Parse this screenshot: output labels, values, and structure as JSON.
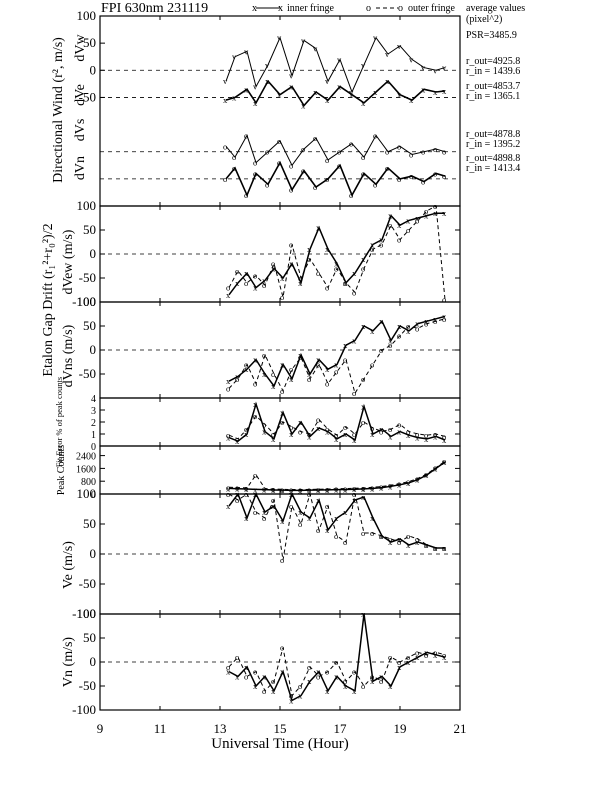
{
  "header": {
    "title": "FPI 630nm 231119",
    "legend_inner": "inner fringe",
    "legend_outer": "outer fringe",
    "legend_avg_line1": "average values",
    "legend_avg_line2": "(pixel^2)"
  },
  "psr_label": "PSR=3485.9",
  "ring_labels": [
    {
      "out": "r_out=4925.8",
      "in": "r_in = 1439.6"
    },
    {
      "out": "r_out=4853.7",
      "in": "r_in = 1365.1"
    },
    {
      "out": "r_out=4878.8",
      "in": "r_in = 1395.2"
    },
    {
      "out": "r_out=4898.8",
      "in": "r_in = 1413.4"
    }
  ],
  "x_axis": {
    "label": "Universal Time (Hour)",
    "min": 9,
    "max": 21,
    "ticks": [
      "9",
      "11",
      "13",
      "15",
      "17",
      "19",
      "21"
    ]
  },
  "chart_data": [
    {
      "type": "line",
      "panel": "directional-wind",
      "ylabel": "Directional Wind (r², m/s)",
      "sub_labels": [
        "dVw",
        "dVe",
        "dVs",
        "dVn"
      ],
      "yticks": [
        "100",
        "50",
        "0",
        "-50"
      ],
      "baselines": [
        0,
        -50,
        -150,
        -200
      ],
      "ylim": [
        -250,
        100
      ],
      "series": [
        {
          "x": [
            13.2,
            13.5,
            13.9,
            14.2,
            14.6,
            15.0,
            15.4,
            15.8,
            16.2,
            16.6,
            17.0,
            17.4,
            17.8,
            18.2,
            18.6,
            19.0,
            19.4,
            19.8,
            20.2,
            20.5
          ],
          "values": [
            -20,
            25,
            35,
            -30,
            10,
            60,
            -10,
            55,
            40,
            -20,
            20,
            -40,
            10,
            60,
            30,
            45,
            20,
            5,
            0,
            5
          ]
        },
        {
          "x": [
            13.2,
            13.5,
            13.9,
            14.2,
            14.6,
            15.0,
            15.4,
            15.8,
            16.2,
            16.6,
            17.0,
            17.4,
            17.8,
            18.2,
            18.6,
            19.0,
            19.4,
            19.8,
            20.2,
            20.5
          ],
          "values": [
            -55,
            -50,
            -35,
            -60,
            -20,
            -45,
            -30,
            -65,
            -40,
            -55,
            -30,
            -45,
            -60,
            -40,
            -20,
            -45,
            -55,
            -35,
            -40,
            -38
          ]
        },
        {
          "x": [
            13.2,
            13.5,
            13.9,
            14.2,
            14.6,
            15.0,
            15.4,
            15.8,
            16.2,
            16.6,
            17.0,
            17.4,
            17.8,
            18.2,
            18.6,
            19.0,
            19.4,
            19.8,
            20.2,
            20.5
          ],
          "values": [
            -140,
            -160,
            -120,
            -170,
            -150,
            -130,
            -175,
            -145,
            -125,
            -165,
            -150,
            -135,
            -160,
            -120,
            -150,
            -140,
            -155,
            -150,
            -145,
            -150
          ]
        },
        {
          "x": [
            13.2,
            13.5,
            13.9,
            14.2,
            14.6,
            15.0,
            15.4,
            15.8,
            16.2,
            16.6,
            17.0,
            17.4,
            17.8,
            18.2,
            18.6,
            19.0,
            19.4,
            19.8,
            20.2,
            20.5
          ],
          "values": [
            -200,
            -180,
            -230,
            -190,
            -210,
            -170,
            -220,
            -185,
            -215,
            -200,
            -175,
            -230,
            -190,
            -210,
            -180,
            -200,
            -195,
            -205,
            -190,
            -195
          ]
        }
      ]
    },
    {
      "type": "line",
      "panel": "etalon-dvew",
      "ylabel": "dVew (m/s)",
      "group_ylabel": "Etalon Gap Drift (r₁²+r₀²)/2",
      "yticks": [
        "100",
        "50",
        "0",
        "-50",
        "-100"
      ],
      "ylim": [
        -100,
        100
      ],
      "series": [
        {
          "name": "inner fringe",
          "x": [
            13.3,
            13.6,
            13.9,
            14.2,
            14.5,
            14.8,
            15.1,
            15.4,
            15.7,
            16.0,
            16.3,
            16.6,
            16.9,
            17.2,
            17.5,
            17.8,
            18.1,
            18.4,
            18.7,
            19.0,
            19.3,
            19.6,
            19.9,
            20.2,
            20.5
          ],
          "values": [
            -85,
            -60,
            -40,
            -70,
            -55,
            -30,
            -50,
            -20,
            -60,
            10,
            55,
            10,
            -20,
            -60,
            -40,
            -10,
            20,
            30,
            80,
            60,
            70,
            75,
            80,
            85,
            85
          ]
        },
        {
          "name": "outer fringe",
          "x": [
            13.3,
            13.6,
            13.9,
            14.2,
            14.5,
            14.8,
            15.1,
            15.4,
            15.7,
            16.0,
            16.3,
            16.6,
            16.9,
            17.2,
            17.5,
            17.8,
            18.1,
            18.4,
            18.7,
            19.0,
            19.3,
            19.6,
            19.9,
            20.2,
            20.5
          ],
          "values": [
            -70,
            -35,
            -60,
            -45,
            -65,
            -20,
            -90,
            20,
            -50,
            -10,
            -40,
            -70,
            -30,
            -60,
            -80,
            -30,
            10,
            20,
            60,
            30,
            50,
            70,
            90,
            100,
            -95
          ]
        }
      ]
    },
    {
      "type": "line",
      "panel": "etalon-dvns",
      "ylabel": "dVns (m/s)",
      "yticks": [
        "100",
        "50",
        "0",
        "-50"
      ],
      "ylim": [
        -100,
        100
      ],
      "series": [
        {
          "name": "inner fringe",
          "x": [
            13.3,
            13.6,
            13.9,
            14.2,
            14.5,
            14.8,
            15.1,
            15.4,
            15.7,
            16.0,
            16.3,
            16.6,
            16.9,
            17.2,
            17.5,
            17.8,
            18.1,
            18.4,
            18.7,
            19.0,
            19.3,
            19.6,
            19.9,
            20.2,
            20.5
          ],
          "values": [
            -65,
            -55,
            -40,
            -20,
            -50,
            -75,
            -30,
            -60,
            -10,
            -50,
            -20,
            -40,
            -30,
            10,
            20,
            50,
            40,
            60,
            20,
            50,
            40,
            55,
            60,
            65,
            70
          ]
        },
        {
          "name": "outer fringe",
          "x": [
            13.3,
            13.6,
            13.9,
            14.2,
            14.5,
            14.8,
            15.1,
            15.4,
            15.7,
            16.0,
            16.3,
            16.6,
            16.9,
            17.2,
            17.5,
            17.8,
            18.1,
            18.4,
            18.7,
            19.0,
            19.3,
            19.6,
            19.9,
            20.2,
            20.5
          ],
          "values": [
            -80,
            -60,
            -30,
            -70,
            -10,
            -50,
            -85,
            -40,
            -15,
            -60,
            -30,
            -70,
            -45,
            -20,
            -90,
            -60,
            -30,
            0,
            10,
            30,
            50,
            45,
            55,
            60,
            65
          ]
        }
      ]
    },
    {
      "type": "line",
      "panel": "fit-error",
      "ylabel": "Fit Error % of peak counts",
      "yticks": [
        "4",
        "3",
        "2",
        "1",
        "0"
      ],
      "ylim": [
        0,
        4
      ],
      "series": [
        {
          "name": "inner fringe",
          "x": [
            13.3,
            13.6,
            13.9,
            14.2,
            14.5,
            14.8,
            15.1,
            15.4,
            15.7,
            16.0,
            16.3,
            16.6,
            16.9,
            17.2,
            17.5,
            17.8,
            18.1,
            18.4,
            18.7,
            19.0,
            19.3,
            19.6,
            19.9,
            20.2,
            20.5
          ],
          "values": [
            0.7,
            0.4,
            1.0,
            3.5,
            1.2,
            0.6,
            2.8,
            1.0,
            2.0,
            0.8,
            1.5,
            1.2,
            0.6,
            1.0,
            0.5,
            3.3,
            1.0,
            1.4,
            0.8,
            1.2,
            0.9,
            0.7,
            0.6,
            0.8,
            0.5
          ]
        },
        {
          "name": "outer fringe",
          "x": [
            13.3,
            13.6,
            13.9,
            14.2,
            14.5,
            14.8,
            15.1,
            15.4,
            15.7,
            16.0,
            16.3,
            16.6,
            16.9,
            17.2,
            17.5,
            17.8,
            18.1,
            18.4,
            18.7,
            19.0,
            19.3,
            19.6,
            19.9,
            20.2,
            20.5
          ],
          "values": [
            0.9,
            0.6,
            1.4,
            2.5,
            1.8,
            1.0,
            2.0,
            1.6,
            1.2,
            1.0,
            2.2,
            1.4,
            0.9,
            1.6,
            1.0,
            2.0,
            1.5,
            1.2,
            1.4,
            1.8,
            1.2,
            1.0,
            0.9,
            1.0,
            0.8
          ]
        }
      ]
    },
    {
      "type": "line",
      "panel": "peak-counts",
      "ylabel": "Peak Counts",
      "yticks": [
        "2400",
        "1600",
        "800",
        "0"
      ],
      "ylim": [
        0,
        3000
      ],
      "series": [
        {
          "name": "inner fringe",
          "x": [
            13.3,
            13.6,
            13.9,
            14.2,
            14.5,
            14.8,
            15.1,
            15.4,
            15.7,
            16.0,
            16.3,
            16.6,
            16.9,
            17.2,
            17.5,
            17.8,
            18.1,
            18.4,
            18.7,
            19.0,
            19.3,
            19.6,
            19.9,
            20.2,
            20.5
          ],
          "values": [
            350,
            330,
            310,
            290,
            270,
            250,
            240,
            230,
            230,
            240,
            250,
            260,
            270,
            280,
            300,
            320,
            350,
            400,
            480,
            580,
            700,
            900,
            1200,
            1600,
            2000
          ]
        },
        {
          "name": "outer fringe",
          "x": [
            13.3,
            13.6,
            13.9,
            14.2,
            14.5,
            14.8,
            15.1,
            15.4,
            15.7,
            16.0,
            16.3,
            16.6,
            16.9,
            17.2,
            17.5,
            17.8,
            18.1,
            18.4,
            18.7,
            19.0,
            19.3,
            19.6,
            19.9,
            20.2,
            20.5
          ],
          "values": [
            420,
            400,
            380,
            1200,
            340,
            310,
            290,
            280,
            280,
            290,
            300,
            310,
            330,
            340,
            360,
            380,
            420,
            470,
            550,
            650,
            780,
            980,
            1250,
            1650,
            2050
          ]
        }
      ]
    },
    {
      "type": "line",
      "panel": "ve",
      "ylabel": "Ve (m/s)",
      "yticks": [
        "100",
        "50",
        "0",
        "-50",
        "-100"
      ],
      "ylim": [
        -100,
        100
      ],
      "series": [
        {
          "name": "inner fringe",
          "x": [
            13.3,
            13.6,
            13.9,
            14.2,
            14.5,
            14.8,
            15.1,
            15.4,
            15.7,
            16.0,
            16.3,
            16.6,
            16.9,
            17.2,
            17.5,
            17.8,
            18.1,
            18.4,
            18.7,
            19.0,
            19.3,
            19.6,
            19.9,
            20.2,
            20.5
          ],
          "values": [
            80,
            110,
            60,
            120,
            70,
            80,
            55,
            100,
            70,
            60,
            90,
            40,
            60,
            70,
            90,
            95,
            60,
            30,
            20,
            25,
            15,
            20,
            15,
            10,
            10
          ]
        },
        {
          "name": "outer fringe",
          "x": [
            13.3,
            13.6,
            13.9,
            14.2,
            14.5,
            14.8,
            15.1,
            15.4,
            15.7,
            16.0,
            16.3,
            16.6,
            16.9,
            17.2,
            17.5,
            17.8,
            18.1,
            18.4,
            18.7,
            19.0,
            19.3,
            19.6,
            19.9,
            20.2,
            20.5
          ],
          "values": [
            100,
            90,
            120,
            70,
            60,
            90,
            -10,
            80,
            50,
            100,
            40,
            80,
            30,
            20,
            110,
            35,
            35,
            30,
            25,
            20,
            30,
            25,
            15,
            10,
            10
          ]
        }
      ]
    },
    {
      "type": "line",
      "panel": "vn",
      "ylabel": "Vn (m/s)",
      "yticks": [
        "100",
        "50",
        "0",
        "-50",
        "-100"
      ],
      "ylim": [
        -100,
        100
      ],
      "series": [
        {
          "name": "inner fringe",
          "x": [
            13.3,
            13.6,
            13.9,
            14.2,
            14.5,
            14.8,
            15.1,
            15.4,
            15.7,
            16.0,
            16.3,
            16.6,
            16.9,
            17.2,
            17.5,
            17.8,
            18.1,
            18.4,
            18.7,
            19.0,
            19.3,
            19.6,
            19.9,
            20.2,
            20.5
          ],
          "values": [
            -20,
            -30,
            -10,
            -50,
            -30,
            -60,
            -20,
            -80,
            -70,
            -40,
            -20,
            -60,
            -30,
            -50,
            -60,
            100,
            -40,
            -30,
            -50,
            -10,
            0,
            10,
            20,
            15,
            10
          ]
        },
        {
          "name": "outer fringe",
          "x": [
            13.3,
            13.6,
            13.9,
            14.2,
            14.5,
            14.8,
            15.1,
            15.4,
            15.7,
            16.0,
            16.3,
            16.6,
            16.9,
            17.2,
            17.5,
            17.8,
            18.1,
            18.4,
            18.7,
            19.0,
            19.3,
            19.6,
            19.9,
            20.2,
            20.5
          ],
          "values": [
            -10,
            10,
            -30,
            -20,
            -60,
            -40,
            30,
            -70,
            -50,
            -10,
            -30,
            -20,
            0,
            -40,
            -20,
            -50,
            -30,
            -40,
            10,
            0,
            10,
            20,
            15,
            20,
            15
          ]
        }
      ]
    }
  ]
}
